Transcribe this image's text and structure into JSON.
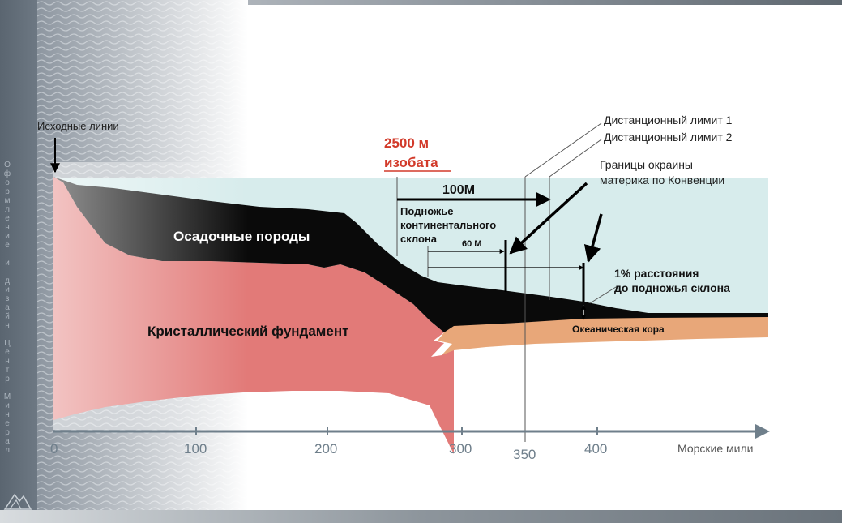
{
  "title_lines": [
    "Исходные линии"
  ],
  "layers": {
    "sediments": "Осадочные породы",
    "basement": "Кристаллический фундамент",
    "oceanic_crust": "Океаническая кора"
  },
  "isobath": {
    "line1": "2500 м",
    "line2": "изобата"
  },
  "labels": {
    "limit1": "Дистанционный лимит 1",
    "limit2": "Дистанционный лимит 2",
    "boundaries_line1": "Границы окраины",
    "boundaries_line2": "материка по Конвенции",
    "foot_line1": "Подножье",
    "foot_line2": "континентального",
    "foot_line3": "склона",
    "m100": "100М",
    "m60": "60 М",
    "pct_line1": "1% расстояния",
    "pct_line2": "до подножья склона"
  },
  "axis": {
    "ticks": [
      "0",
      "100",
      "200",
      "300",
      "400"
    ],
    "marker": "350",
    "unit": "Морские мили"
  },
  "sidebar_vertical_text": [
    "О",
    "ф",
    "о",
    "р",
    "м",
    "л",
    "е",
    "н",
    "и",
    "е",
    " ",
    "и",
    " ",
    "д",
    "и",
    "з",
    "а",
    "й",
    "н",
    " ",
    "Ц",
    "е",
    "н",
    "т",
    "р",
    " ",
    "М",
    "и",
    "н",
    "е",
    "р",
    "а",
    "л"
  ],
  "colors": {
    "sea": "#d7ecec",
    "sediment": "#0a0a0a",
    "basement": "#e27a78",
    "crust": "#e8a779",
    "isobath_red": "#d23a2a",
    "axis": "#6f7f8b"
  }
}
